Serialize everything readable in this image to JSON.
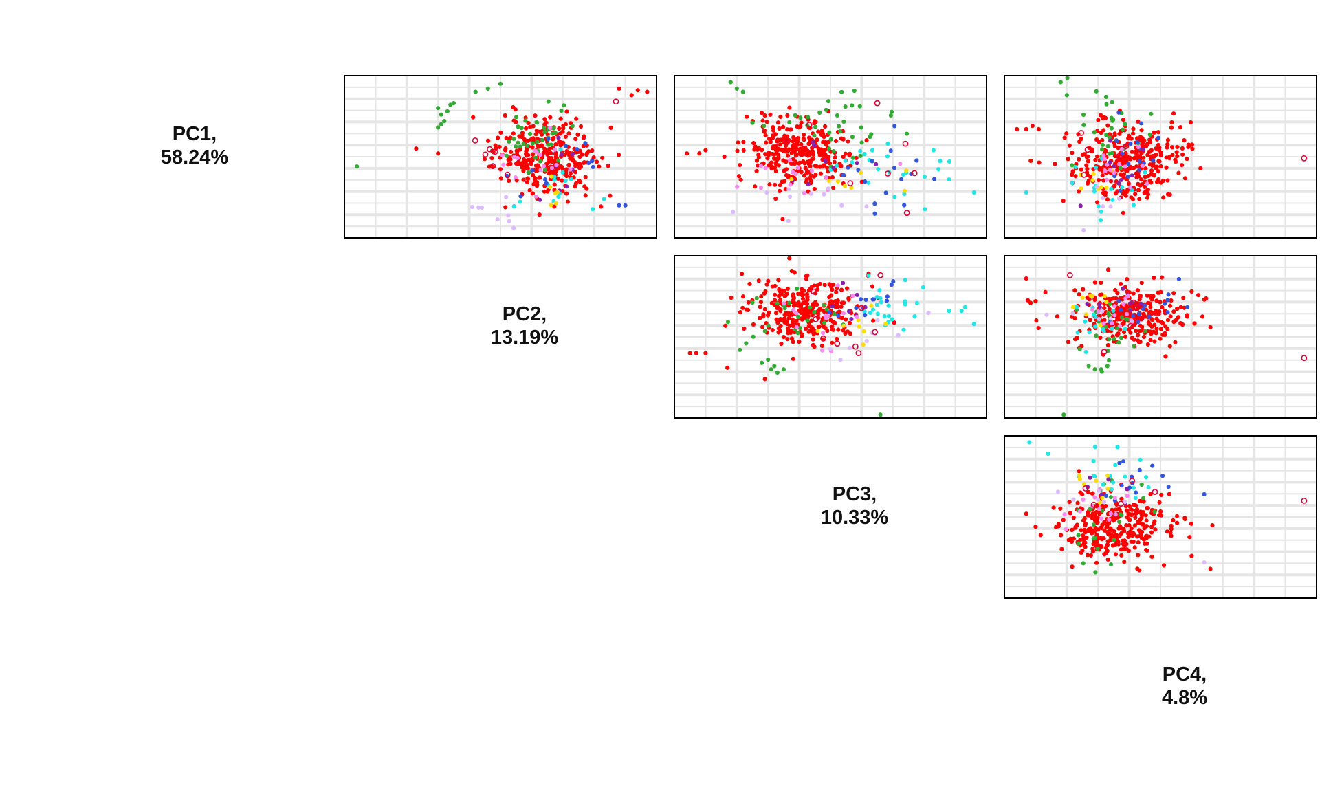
{
  "chart_data": {
    "type": "scatter",
    "layout": "pairs-matrix-upper",
    "grid": true,
    "variables": [
      {
        "name": "PC1,",
        "variance": "58.24%"
      },
      {
        "name": "PC2,",
        "variance": "13.19%"
      },
      {
        "name": "PC3,",
        "variance": "10.33%"
      },
      {
        "name": "PC4,",
        "variance": "4.8%"
      }
    ],
    "point_colors": {
      "main": "#ff0000",
      "green": "#33aa33",
      "cyan": "#22e5e5",
      "blue": "#3355dd",
      "purple": "#8822aa",
      "yellow": "#ffdd00",
      "pink": "#ff88ee",
      "lavender": "#ddbbff",
      "open_ring": "#dd0033"
    },
    "panels": [
      {
        "name": "PC1-PC2",
        "row": 0,
        "col": 1,
        "clusters": [
          {
            "color": "main",
            "n": 320,
            "cx": 0.64,
            "cy": 0.5,
            "sx": 0.08,
            "sy": 0.12,
            "seed": 11
          },
          {
            "color": "green",
            "n": 40,
            "cx": 0.62,
            "cy": 0.38,
            "sx": 0.05,
            "sy": 0.1,
            "seed": 12
          },
          {
            "color": "cyan",
            "n": 14,
            "cx": 0.66,
            "cy": 0.68,
            "sx": 0.06,
            "sy": 0.08,
            "seed": 13
          },
          {
            "color": "blue",
            "n": 12,
            "cx": 0.72,
            "cy": 0.58,
            "sx": 0.06,
            "sy": 0.1,
            "seed": 14
          },
          {
            "color": "purple",
            "n": 8,
            "cx": 0.68,
            "cy": 0.6,
            "sx": 0.05,
            "sy": 0.12,
            "seed": 15
          },
          {
            "color": "yellow",
            "n": 6,
            "cx": 0.68,
            "cy": 0.72,
            "sx": 0.03,
            "sy": 0.05,
            "seed": 16
          },
          {
            "color": "pink",
            "n": 16,
            "cx": 0.63,
            "cy": 0.52,
            "sx": 0.05,
            "sy": 0.08,
            "seed": 17
          },
          {
            "color": "lavender",
            "n": 8,
            "cx": 0.52,
            "cy": 0.78,
            "sx": 0.08,
            "sy": 0.08,
            "seed": 18
          },
          {
            "color": "open_ring",
            "n": 6,
            "cx": 0.5,
            "cy": 0.55,
            "sx": 0.08,
            "sy": 0.1,
            "seed": 19,
            "open": true
          }
        ],
        "extras": [
          {
            "color": "green",
            "x": [
              0.04,
              0.3,
              0.31,
              0.32,
              0.33,
              0.34,
              0.35,
              0.31,
              0.3,
              0.42,
              0.46,
              0.5
            ],
            "y": [
              0.56,
              0.2,
              0.24,
              0.28,
              0.22,
              0.18,
              0.17,
              0.3,
              0.32,
              0.1,
              0.08,
              0.05
            ]
          },
          {
            "color": "main",
            "x": [
              0.23,
              0.3,
              0.94,
              0.97,
              0.88,
              0.92
            ],
            "y": [
              0.45,
              0.48,
              0.09,
              0.1,
              0.08,
              0.12
            ]
          },
          {
            "color": "blue",
            "x": [
              0.88,
              0.9
            ],
            "y": [
              0.8,
              0.8
            ]
          },
          {
            "color": "open_ring",
            "x": [
              0.87
            ],
            "y": [
              0.16
            ],
            "open": true
          }
        ]
      },
      {
        "name": "PC1-PC3",
        "row": 0,
        "col": 2,
        "clusters": [
          {
            "color": "main",
            "n": 320,
            "cx": 0.4,
            "cy": 0.48,
            "sx": 0.08,
            "sy": 0.11,
            "seed": 21
          },
          {
            "color": "green",
            "n": 36,
            "cx": 0.52,
            "cy": 0.32,
            "sx": 0.1,
            "sy": 0.1,
            "seed": 22
          },
          {
            "color": "cyan",
            "n": 22,
            "cx": 0.72,
            "cy": 0.58,
            "sx": 0.09,
            "sy": 0.12,
            "seed": 23
          },
          {
            "color": "blue",
            "n": 16,
            "cx": 0.68,
            "cy": 0.6,
            "sx": 0.08,
            "sy": 0.12,
            "seed": 24
          },
          {
            "color": "purple",
            "n": 8,
            "cx": 0.55,
            "cy": 0.55,
            "sx": 0.08,
            "sy": 0.14,
            "seed": 25
          },
          {
            "color": "yellow",
            "n": 8,
            "cx": 0.58,
            "cy": 0.66,
            "sx": 0.12,
            "sy": 0.08,
            "seed": 26
          },
          {
            "color": "pink",
            "n": 14,
            "cx": 0.45,
            "cy": 0.6,
            "sx": 0.1,
            "sy": 0.08,
            "seed": 27
          },
          {
            "color": "lavender",
            "n": 10,
            "cx": 0.5,
            "cy": 0.8,
            "sx": 0.14,
            "sy": 0.08,
            "seed": 28
          },
          {
            "color": "open_ring",
            "n": 6,
            "cx": 0.58,
            "cy": 0.55,
            "sx": 0.1,
            "sy": 0.14,
            "seed": 29,
            "open": true
          }
        ],
        "extras": [
          {
            "color": "green",
            "x": [
              0.18,
              0.2,
              0.22
            ],
            "y": [
              0.04,
              0.08,
              0.1
            ]
          },
          {
            "color": "main",
            "x": [
              0.04,
              0.08,
              0.1,
              0.16
            ],
            "y": [
              0.48,
              0.48,
              0.46,
              0.5
            ]
          },
          {
            "color": "cyan",
            "x": [
              0.96,
              0.88,
              0.83
            ],
            "y": [
              0.72,
              0.64,
              0.46
            ]
          },
          {
            "color": "open_ring",
            "x": [
              0.65,
              0.74
            ],
            "y": [
              0.17,
              0.42
            ],
            "open": true
          }
        ]
      },
      {
        "name": "PC1-PC4",
        "row": 0,
        "col": 3,
        "clusters": [
          {
            "color": "main",
            "n": 320,
            "cx": 0.4,
            "cy": 0.52,
            "sx": 0.09,
            "sy": 0.12,
            "seed": 31
          },
          {
            "color": "green",
            "n": 32,
            "cx": 0.33,
            "cy": 0.34,
            "sx": 0.06,
            "sy": 0.14,
            "seed": 32
          },
          {
            "color": "cyan",
            "n": 16,
            "cx": 0.32,
            "cy": 0.66,
            "sx": 0.06,
            "sy": 0.12,
            "seed": 33
          },
          {
            "color": "blue",
            "n": 16,
            "cx": 0.42,
            "cy": 0.5,
            "sx": 0.05,
            "sy": 0.1,
            "seed": 34
          },
          {
            "color": "purple",
            "n": 8,
            "cx": 0.38,
            "cy": 0.52,
            "sx": 0.05,
            "sy": 0.16,
            "seed": 35
          },
          {
            "color": "yellow",
            "n": 8,
            "cx": 0.3,
            "cy": 0.66,
            "sx": 0.04,
            "sy": 0.05,
            "seed": 36
          },
          {
            "color": "pink",
            "n": 14,
            "cx": 0.37,
            "cy": 0.56,
            "sx": 0.05,
            "sy": 0.08,
            "seed": 37
          },
          {
            "color": "lavender",
            "n": 6,
            "cx": 0.33,
            "cy": 0.78,
            "sx": 0.06,
            "sy": 0.1,
            "seed": 38
          },
          {
            "color": "open_ring",
            "n": 5,
            "cx": 0.3,
            "cy": 0.48,
            "sx": 0.08,
            "sy": 0.14,
            "seed": 39,
            "open": true
          }
        ],
        "extras": [
          {
            "color": "main",
            "x": [
              0.04,
              0.07,
              0.09,
              0.11
            ],
            "y": [
              0.33,
              0.33,
              0.31,
              0.33
            ]
          },
          {
            "color": "green",
            "x": [
              0.18,
              0.2
            ],
            "y": [
              0.04,
              0.12
            ]
          },
          {
            "color": "open_ring",
            "x": [
              0.96
            ],
            "y": [
              0.51
            ],
            "open": true
          },
          {
            "color": "cyan",
            "x": [
              0.07
            ],
            "y": [
              0.72
            ]
          }
        ]
      },
      {
        "name": "PC2-PC3",
        "row": 1,
        "col": 2,
        "clusters": [
          {
            "color": "main",
            "n": 320,
            "cx": 0.42,
            "cy": 0.34,
            "sx": 0.09,
            "sy": 0.09,
            "seed": 41
          },
          {
            "color": "green",
            "n": 24,
            "cx": 0.4,
            "cy": 0.36,
            "sx": 0.1,
            "sy": 0.08,
            "seed": 42
          },
          {
            "color": "cyan",
            "n": 24,
            "cx": 0.7,
            "cy": 0.34,
            "sx": 0.07,
            "sy": 0.07,
            "seed": 43
          },
          {
            "color": "blue",
            "n": 12,
            "cx": 0.64,
            "cy": 0.28,
            "sx": 0.06,
            "sy": 0.08,
            "seed": 44
          },
          {
            "color": "purple",
            "n": 8,
            "cx": 0.56,
            "cy": 0.3,
            "sx": 0.06,
            "sy": 0.08,
            "seed": 45
          },
          {
            "color": "yellow",
            "n": 8,
            "cx": 0.62,
            "cy": 0.42,
            "sx": 0.08,
            "sy": 0.08,
            "seed": 46
          },
          {
            "color": "pink",
            "n": 14,
            "cx": 0.5,
            "cy": 0.38,
            "sx": 0.08,
            "sy": 0.08,
            "seed": 47
          },
          {
            "color": "lavender",
            "n": 8,
            "cx": 0.58,
            "cy": 0.5,
            "sx": 0.1,
            "sy": 0.1,
            "seed": 48
          },
          {
            "color": "open_ring",
            "n": 6,
            "cx": 0.56,
            "cy": 0.44,
            "sx": 0.08,
            "sy": 0.1,
            "seed": 49,
            "open": true
          }
        ],
        "extras": [
          {
            "color": "main",
            "x": [
              0.05,
              0.07,
              0.1,
              0.17,
              0.29
            ],
            "y": [
              0.6,
              0.6,
              0.6,
              0.69,
              0.76
            ]
          },
          {
            "color": "green",
            "x": [
              0.28,
              0.3,
              0.31,
              0.32,
              0.33,
              0.35,
              0.23,
              0.21,
              0.66
            ],
            "y": [
              0.66,
              0.64,
              0.7,
              0.68,
              0.72,
              0.7,
              0.54,
              0.58,
              0.98
            ]
          },
          {
            "color": "cyan",
            "x": [
              0.88,
              0.92,
              0.96
            ],
            "y": [
              0.34,
              0.34,
              0.42
            ]
          },
          {
            "color": "open_ring",
            "x": [
              0.66,
              0.59,
              0.58
            ],
            "y": [
              0.12,
              0.6,
              0.56
            ],
            "open": true
          }
        ]
      },
      {
        "name": "PC2-PC4",
        "row": 1,
        "col": 3,
        "clusters": [
          {
            "color": "main",
            "n": 320,
            "cx": 0.4,
            "cy": 0.36,
            "sx": 0.09,
            "sy": 0.09,
            "seed": 51
          },
          {
            "color": "green",
            "n": 24,
            "cx": 0.33,
            "cy": 0.48,
            "sx": 0.05,
            "sy": 0.12,
            "seed": 52
          },
          {
            "color": "cyan",
            "n": 14,
            "cx": 0.3,
            "cy": 0.4,
            "sx": 0.06,
            "sy": 0.06,
            "seed": 53
          },
          {
            "color": "blue",
            "n": 16,
            "cx": 0.44,
            "cy": 0.28,
            "sx": 0.06,
            "sy": 0.08,
            "seed": 54
          },
          {
            "color": "purple",
            "n": 8,
            "cx": 0.38,
            "cy": 0.3,
            "sx": 0.05,
            "sy": 0.06,
            "seed": 55
          },
          {
            "color": "yellow",
            "n": 8,
            "cx": 0.26,
            "cy": 0.3,
            "sx": 0.04,
            "sy": 0.05,
            "seed": 56
          },
          {
            "color": "pink",
            "n": 12,
            "cx": 0.35,
            "cy": 0.36,
            "sx": 0.05,
            "sy": 0.06,
            "seed": 57
          },
          {
            "color": "lavender",
            "n": 6,
            "cx": 0.3,
            "cy": 0.44,
            "sx": 0.06,
            "sy": 0.06,
            "seed": 58
          },
          {
            "color": "open_ring",
            "n": 5,
            "cx": 0.35,
            "cy": 0.42,
            "sx": 0.08,
            "sy": 0.1,
            "seed": 59,
            "open": true
          }
        ],
        "extras": [
          {
            "color": "green",
            "x": [
              0.27,
              0.29,
              0.31,
              0.33,
              0.19
            ],
            "y": [
              0.68,
              0.7,
              0.7,
              0.68,
              0.98
            ]
          },
          {
            "color": "main",
            "x": [
              0.07,
              0.1,
              0.6,
              0.66
            ],
            "y": [
              0.14,
              0.28,
              0.22,
              0.44
            ]
          },
          {
            "color": "open_ring",
            "x": [
              0.96,
              0.21
            ],
            "y": [
              0.63,
              0.12
            ],
            "open": true
          }
        ]
      },
      {
        "name": "PC3-PC4",
        "row": 2,
        "col": 3,
        "clusters": [
          {
            "color": "main",
            "n": 320,
            "cx": 0.36,
            "cy": 0.56,
            "sx": 0.09,
            "sy": 0.1,
            "seed": 61
          },
          {
            "color": "green",
            "n": 24,
            "cx": 0.32,
            "cy": 0.52,
            "sx": 0.05,
            "sy": 0.12,
            "seed": 62
          },
          {
            "color": "cyan",
            "n": 18,
            "cx": 0.36,
            "cy": 0.26,
            "sx": 0.05,
            "sy": 0.07,
            "seed": 63
          },
          {
            "color": "blue",
            "n": 14,
            "cx": 0.4,
            "cy": 0.28,
            "sx": 0.06,
            "sy": 0.08,
            "seed": 64
          },
          {
            "color": "purple",
            "n": 6,
            "cx": 0.34,
            "cy": 0.34,
            "sx": 0.05,
            "sy": 0.08,
            "seed": 65
          },
          {
            "color": "yellow",
            "n": 8,
            "cx": 0.31,
            "cy": 0.28,
            "sx": 0.05,
            "sy": 0.06,
            "seed": 66
          },
          {
            "color": "pink",
            "n": 14,
            "cx": 0.3,
            "cy": 0.44,
            "sx": 0.06,
            "sy": 0.08,
            "seed": 67
          },
          {
            "color": "lavender",
            "n": 6,
            "cx": 0.28,
            "cy": 0.38,
            "sx": 0.06,
            "sy": 0.08,
            "seed": 68
          },
          {
            "color": "open_ring",
            "n": 5,
            "cx": 0.32,
            "cy": 0.4,
            "sx": 0.08,
            "sy": 0.1,
            "seed": 69,
            "open": true
          }
        ],
        "extras": [
          {
            "color": "cyan",
            "x": [
              0.08,
              0.14
            ],
            "y": [
              0.04,
              0.11
            ]
          },
          {
            "color": "main",
            "x": [
              0.07,
              0.1,
              0.6,
              0.66
            ],
            "y": [
              0.48,
              0.56,
              0.74,
              0.82
            ]
          },
          {
            "color": "blue",
            "x": [
              0.64
            ],
            "y": [
              0.36
            ]
          },
          {
            "color": "lavender",
            "x": [
              0.64
            ],
            "y": [
              0.78
            ]
          },
          {
            "color": "open_ring",
            "x": [
              0.96
            ],
            "y": [
              0.4
            ],
            "open": true
          }
        ]
      }
    ]
  }
}
